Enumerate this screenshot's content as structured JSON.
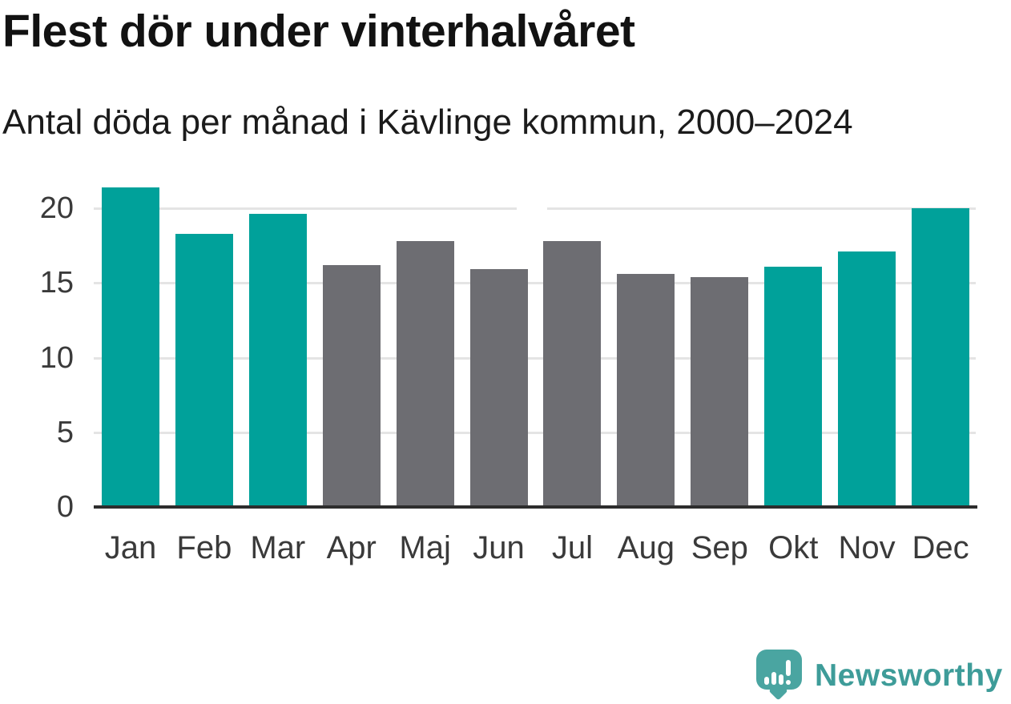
{
  "chart_data": {
    "type": "bar",
    "title": "Flest dör under vinterhalvåret",
    "subtitle": "Antal döda per månad i Kävlinge kommun, 2000–2024",
    "categories": [
      "Jan",
      "Feb",
      "Mar",
      "Apr",
      "Maj",
      "Jun",
      "Jul",
      "Aug",
      "Sep",
      "Okt",
      "Nov",
      "Dec"
    ],
    "values": [
      21.4,
      18.3,
      19.6,
      16.2,
      17.8,
      15.9,
      17.8,
      15.6,
      15.4,
      16.1,
      17.1,
      20.0
    ],
    "highlighted": [
      true,
      true,
      true,
      false,
      false,
      false,
      false,
      false,
      false,
      true,
      true,
      true
    ],
    "colors": {
      "highlight": "#00a19a",
      "default": "#6d6d72"
    },
    "xlabel": "",
    "ylabel": "",
    "yticks": [
      0,
      5,
      10,
      15,
      20
    ],
    "ylim": [
      0,
      21.9
    ],
    "grid": true,
    "legend": false
  },
  "branding": {
    "name": "Newsworthy",
    "logo_icon": "speech-bubble-bar-chart-icon",
    "wordmark_color": "#3e9c99",
    "bubble_color": "#4aa5a1"
  }
}
